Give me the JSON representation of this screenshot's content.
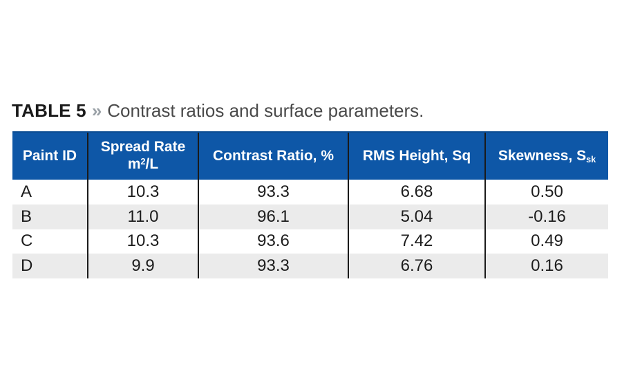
{
  "title": {
    "label": "TABLE 5",
    "separator": "»",
    "text": "Contrast ratios and surface parameters."
  },
  "table": {
    "columns": [
      {
        "id": "paint-id",
        "lines": [
          [
            {
              "t": "Paint ID"
            }
          ]
        ]
      },
      {
        "id": "spread-rate",
        "lines": [
          [
            {
              "t": "Spread Rate"
            }
          ],
          [
            {
              "t": "m"
            },
            {
              "t": "2",
              "style": "sup"
            },
            {
              "t": "/L"
            }
          ]
        ]
      },
      {
        "id": "contrast-ratio",
        "lines": [
          [
            {
              "t": "Contrast Ratio, %"
            }
          ]
        ]
      },
      {
        "id": "rms-height",
        "lines": [
          [
            {
              "t": "RMS Height, Sq"
            }
          ]
        ]
      },
      {
        "id": "skewness",
        "lines": [
          [
            {
              "t": "Skewness, S"
            },
            {
              "t": "sk",
              "style": "sub"
            }
          ]
        ]
      }
    ],
    "rows": [
      {
        "id": "A",
        "cells": [
          "A",
          "10.3",
          "93.3",
          "6.68",
          "0.50"
        ]
      },
      {
        "id": "B",
        "cells": [
          "B",
          "11.0",
          "96.1",
          "5.04",
          "-0.16"
        ]
      },
      {
        "id": "C",
        "cells": [
          "C",
          "10.3",
          "93.6",
          "7.42",
          "0.49"
        ]
      },
      {
        "id": "D",
        "cells": [
          "D",
          "9.9",
          "93.3",
          "6.76",
          "0.16"
        ]
      }
    ]
  },
  "colors": {
    "header_background": "#0e57a7",
    "header_top_border": "#0c4d92",
    "header_text": "#ffffff",
    "row_stripe": "#ebebeb",
    "column_separator": "#1a1a1a",
    "title_label": "#1a1a1a",
    "title_separator": "#9aa1a7",
    "title_text": "#4a4a4a",
    "body_text": "#1c1c1c",
    "page_background": "#ffffff"
  },
  "chart_data": {
    "type": "table",
    "title": "TABLE 5 » Contrast ratios and surface parameters.",
    "columns": [
      "Paint ID",
      "Spread Rate m²/L",
      "Contrast Ratio, %",
      "RMS Height, Sq",
      "Skewness, Ssk"
    ],
    "rows": [
      [
        "A",
        10.3,
        93.3,
        6.68,
        0.5
      ],
      [
        "B",
        11.0,
        96.1,
        5.04,
        -0.16
      ],
      [
        "C",
        10.3,
        93.6,
        7.42,
        0.49
      ],
      [
        "D",
        9.9,
        93.3,
        6.76,
        0.16
      ]
    ]
  }
}
